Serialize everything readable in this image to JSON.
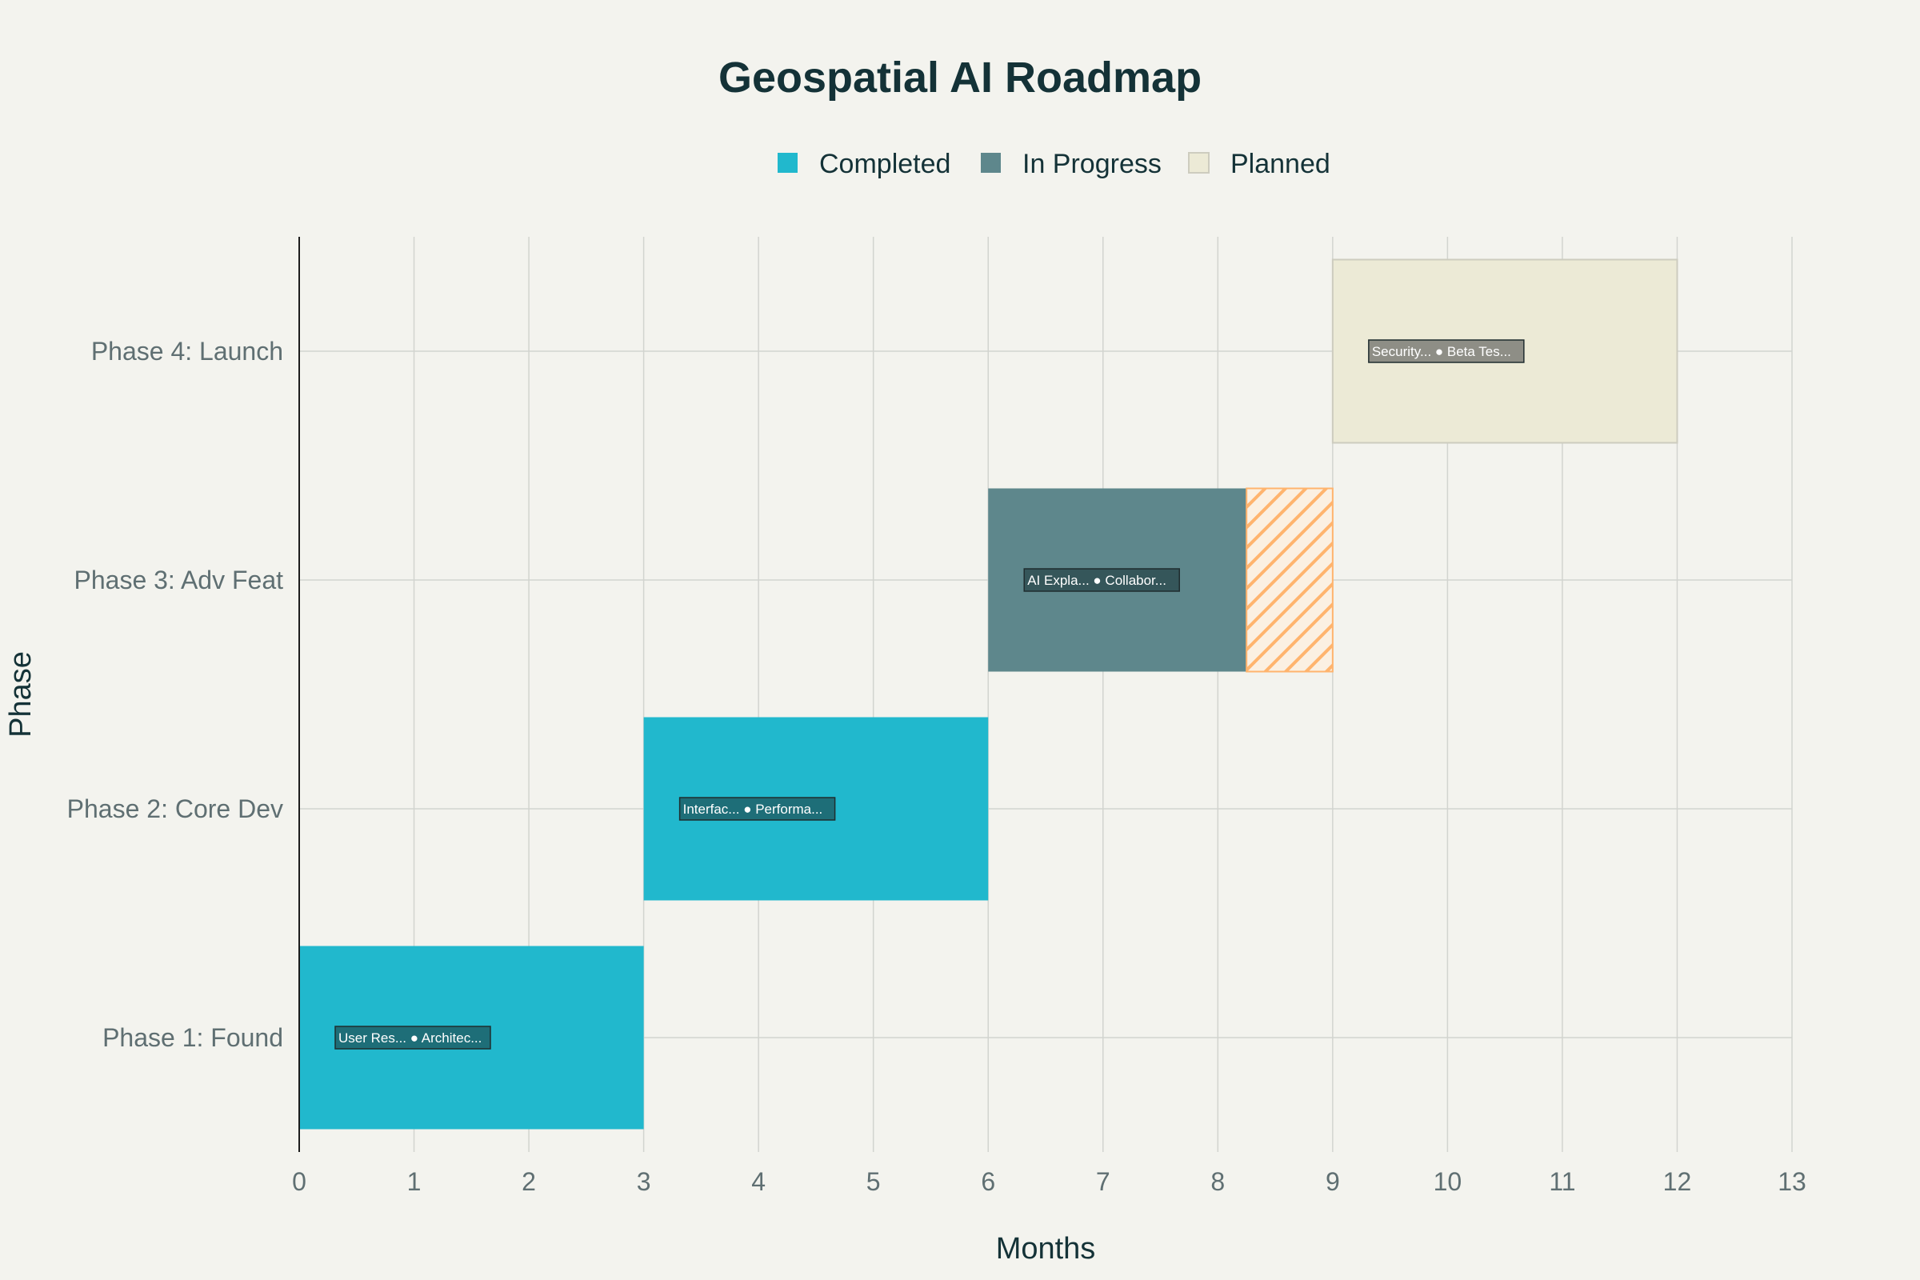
{
  "chart_data": {
    "type": "bar",
    "orientation": "horizontal",
    "title": "Geospatial AI Roadmap",
    "xlabel": "Months",
    "ylabel": "Phase",
    "xlim": [
      0,
      13
    ],
    "x_ticks": [
      "0",
      "1",
      "2",
      "3",
      "4",
      "5",
      "6",
      "7",
      "8",
      "9",
      "10",
      "11",
      "12",
      "13"
    ],
    "grid": true,
    "legend_position": "top-center",
    "legend": [
      {
        "name": "Completed",
        "color": "#21b8cd"
      },
      {
        "name": "In Progress",
        "color": "#5e878c"
      },
      {
        "name": "Planned",
        "color": "#ecead6"
      }
    ],
    "phases": [
      {
        "label": "Phase 1: Found",
        "start": 0,
        "end": 3,
        "status": "Completed",
        "tasks_label": "User Res... ● Architec..."
      },
      {
        "label": "Phase 2: Core Dev",
        "start": 3,
        "end": 6,
        "status": "Completed",
        "tasks_label": "Interfac... ● Performa..."
      },
      {
        "label": "Phase 3: Adv Feat",
        "start": 6,
        "end": 9,
        "status": "In Progress",
        "progress_end": 8.25,
        "tasks_label": "AI Expla... ● Collabor..."
      },
      {
        "label": "Phase 4: Launch",
        "start": 9,
        "end": 12,
        "status": "Planned",
        "tasks_label": "Security... ● Beta Tes..."
      }
    ],
    "colors": {
      "background": "#f3f3ee",
      "grid": "#d2d4cf",
      "remaining_hatch": "#ffb46e",
      "label_box_completed": "#1e6e78",
      "label_box_in_progress": "#35565a",
      "label_box_planned": "#8e8e86"
    }
  }
}
